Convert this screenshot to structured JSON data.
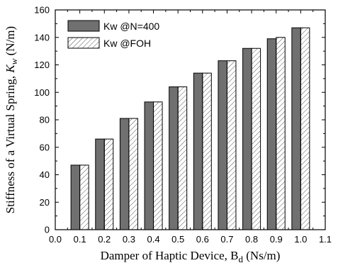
{
  "chart_data": {
    "type": "bar",
    "xlabel": "Damper of Haptic Device, B",
    "xlabel_sub": "d",
    "xlabel_unit": " (Ns/m)",
    "ylabel": "Stiffness of a Virtual Spring, ",
    "ylabel_var": "K",
    "ylabel_sub": "w",
    "ylabel_unit": " (N/m)",
    "x": [
      0.1,
      0.2,
      0.3,
      0.4,
      0.5,
      0.6,
      0.7,
      0.8,
      0.9,
      1.0
    ],
    "series": [
      {
        "name": "Kw @N=400",
        "values": [
          47,
          66,
          81,
          93,
          104,
          114,
          123,
          132,
          139,
          147
        ],
        "color": "#707070",
        "pattern": "solid"
      },
      {
        "name": "Kw @FOH",
        "values": [
          47,
          66,
          81,
          93,
          104,
          114,
          123,
          132,
          140,
          147
        ],
        "color": "#ffffff",
        "pattern": "hatched"
      }
    ],
    "xlim": [
      0.0,
      1.1
    ],
    "ylim": [
      0,
      160
    ],
    "xticks": [
      "0.0",
      "0.1",
      "0.2",
      "0.3",
      "0.4",
      "0.5",
      "0.6",
      "0.7",
      "0.8",
      "0.9",
      "1.0",
      "1.1"
    ],
    "yticks": [
      "0",
      "20",
      "40",
      "60",
      "80",
      "100",
      "120",
      "140",
      "160"
    ],
    "legend_position": "top-left",
    "grid": false
  }
}
